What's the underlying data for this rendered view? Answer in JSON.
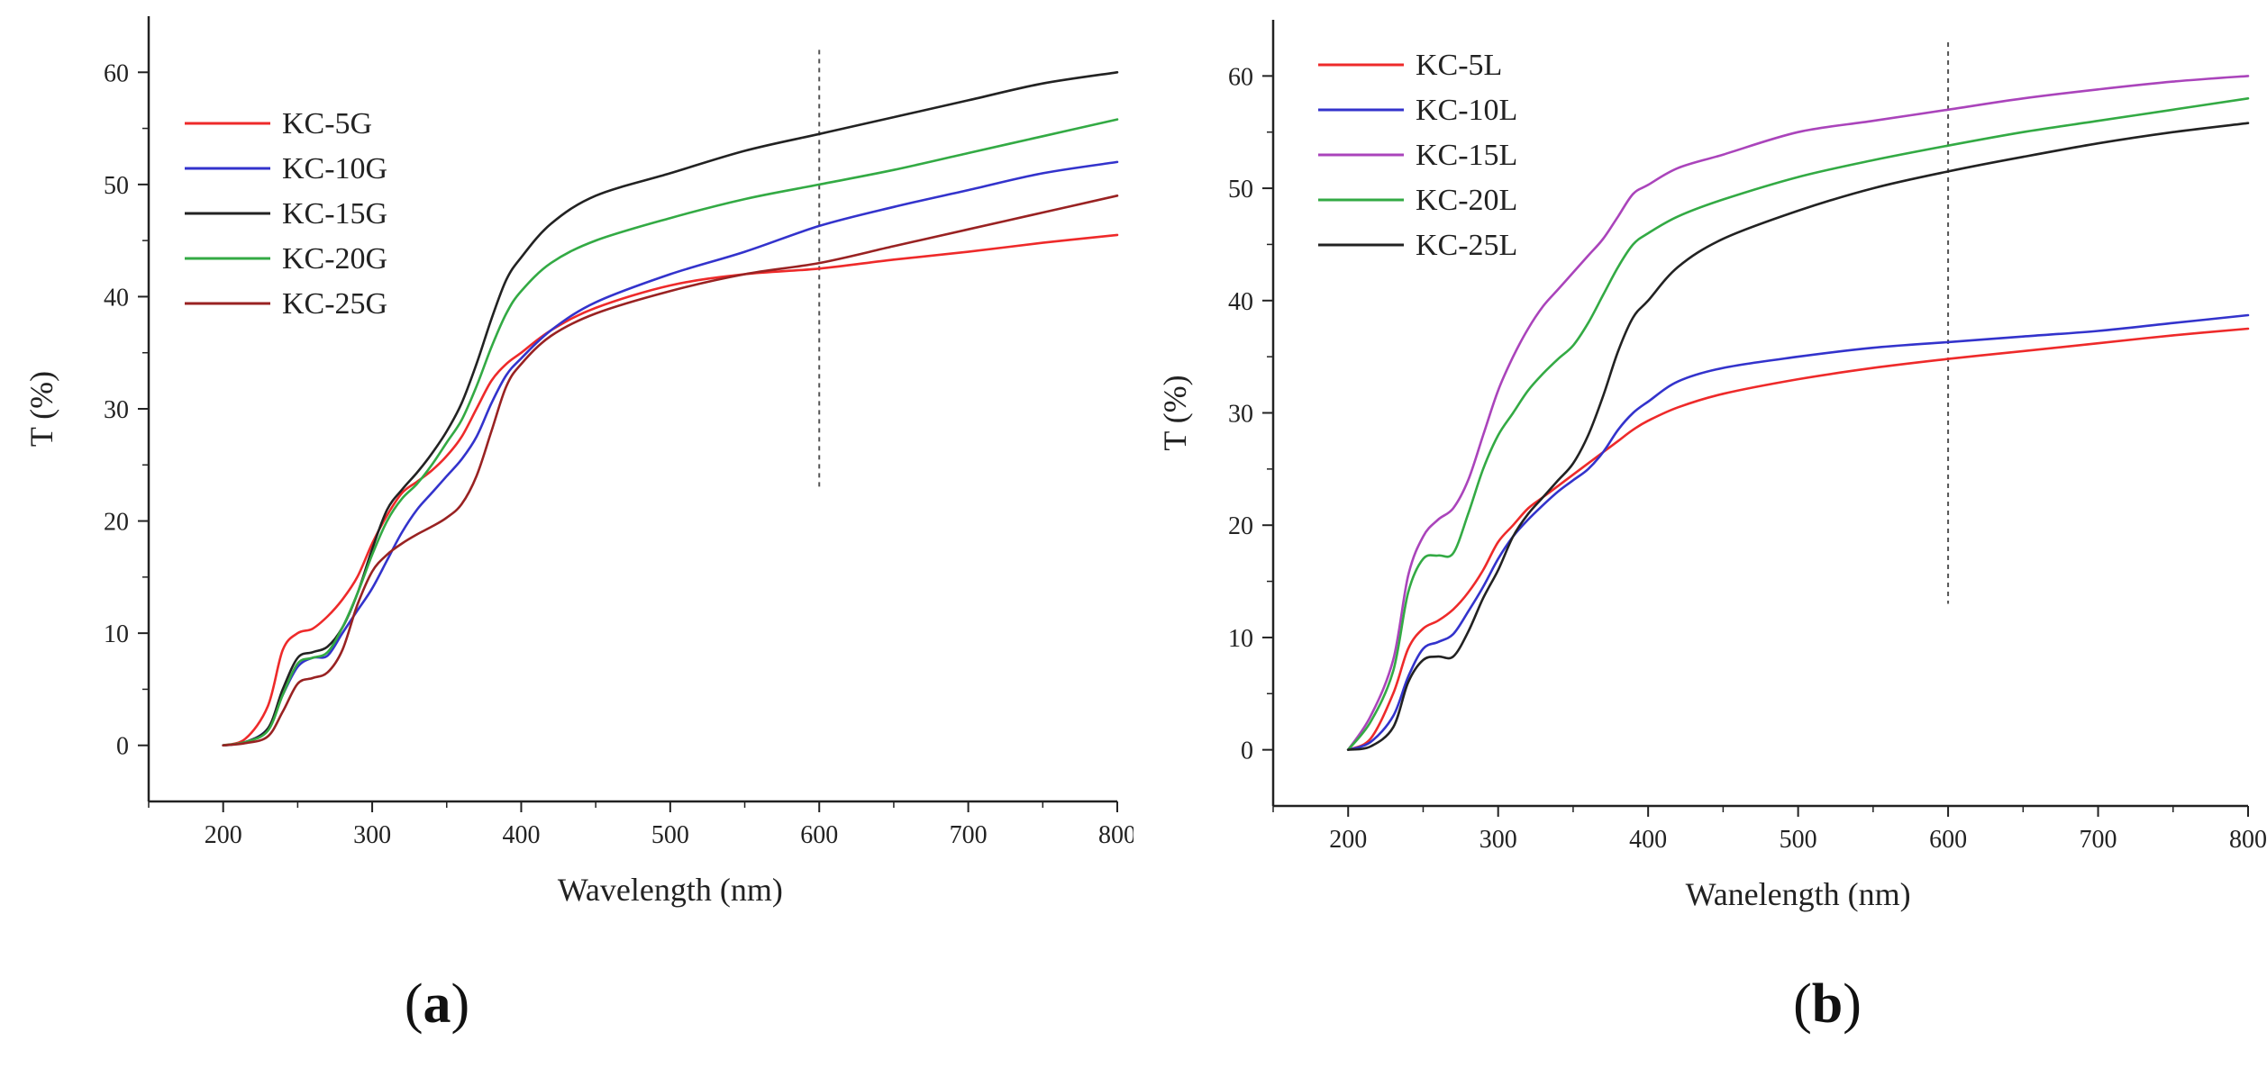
{
  "chart_data": [
    {
      "type": "line",
      "panel_label": "a",
      "title": "",
      "xlabel": "Wavelength (nm)",
      "ylabel": "T (%)",
      "xlim": [
        150,
        800
      ],
      "ylim": [
        -5,
        65
      ],
      "xticks": [
        200,
        300,
        400,
        500,
        600,
        700,
        800
      ],
      "yticks": [
        0,
        10,
        20,
        30,
        40,
        50,
        60
      ],
      "reference_line_x": 600,
      "reference_line_y_range": [
        23,
        62
      ],
      "legend_position": "top-left",
      "series": [
        {
          "name": "KC-5G",
          "color": "#ee2a2a",
          "x": [
            200,
            215,
            230,
            240,
            250,
            260,
            270,
            280,
            290,
            300,
            310,
            320,
            330,
            340,
            350,
            360,
            370,
            380,
            390,
            400,
            420,
            450,
            500,
            550,
            600,
            650,
            700,
            750,
            800
          ],
          "y": [
            0,
            0.6,
            3.5,
            8.5,
            10,
            10.4,
            11.5,
            13,
            15,
            18,
            20.5,
            22.5,
            23.5,
            24.5,
            25.8,
            27.5,
            30,
            32.5,
            34,
            35,
            37,
            39,
            41,
            42,
            42.5,
            43.3,
            44,
            44.8,
            45.5
          ]
        },
        {
          "name": "KC-10G",
          "color": "#3333cc",
          "x": [
            200,
            215,
            230,
            240,
            250,
            260,
            270,
            280,
            290,
            300,
            310,
            320,
            330,
            340,
            350,
            360,
            370,
            380,
            390,
            400,
            420,
            450,
            500,
            550,
            600,
            650,
            700,
            750,
            800
          ],
          "y": [
            0,
            0.3,
            1.5,
            4.5,
            7,
            7.8,
            8,
            10,
            12,
            14,
            16.5,
            19,
            21,
            22.5,
            24,
            25.5,
            27.5,
            30.5,
            33,
            34.5,
            37,
            39.5,
            42,
            44,
            46.3,
            48,
            49.5,
            51,
            52
          ]
        },
        {
          "name": "KC-15G",
          "color": "#222222",
          "x": [
            200,
            215,
            230,
            240,
            250,
            260,
            270,
            280,
            290,
            300,
            310,
            320,
            330,
            340,
            350,
            360,
            370,
            380,
            390,
            400,
            420,
            450,
            500,
            550,
            600,
            650,
            700,
            750,
            800
          ],
          "y": [
            0,
            0.3,
            1.5,
            5,
            7.8,
            8.3,
            8.8,
            10.5,
            13.5,
            17.5,
            21,
            22.8,
            24.3,
            26,
            28,
            30.5,
            34,
            38,
            41.5,
            43.5,
            46.5,
            49,
            51,
            53,
            54.5,
            56,
            57.5,
            59,
            60
          ]
        },
        {
          "name": "KC-20G",
          "color": "#33aa44",
          "x": [
            200,
            215,
            230,
            240,
            250,
            260,
            270,
            280,
            290,
            300,
            310,
            320,
            330,
            340,
            350,
            360,
            370,
            380,
            390,
            400,
            420,
            450,
            500,
            550,
            600,
            650,
            700,
            750,
            800
          ],
          "y": [
            0,
            0.3,
            1.3,
            4.5,
            7.3,
            7.8,
            8.3,
            10.5,
            13.5,
            17,
            20,
            22,
            23.3,
            25,
            27,
            29,
            32,
            35.5,
            38.5,
            40.5,
            43,
            45,
            47,
            48.7,
            50,
            51.3,
            52.8,
            54.3,
            55.8
          ]
        },
        {
          "name": "KC-25G",
          "color": "#992222",
          "x": [
            200,
            215,
            230,
            240,
            250,
            260,
            270,
            280,
            290,
            300,
            310,
            320,
            330,
            340,
            350,
            360,
            370,
            380,
            390,
            400,
            420,
            450,
            500,
            550,
            600,
            650,
            700,
            750,
            800
          ],
          "y": [
            0,
            0.2,
            0.8,
            3,
            5.5,
            6,
            6.5,
            8.5,
            12.5,
            15.5,
            17,
            18,
            18.8,
            19.5,
            20.3,
            21.5,
            24,
            28,
            32,
            34,
            36.5,
            38.5,
            40.5,
            42,
            43,
            44.5,
            46,
            47.5,
            49
          ]
        }
      ]
    },
    {
      "type": "line",
      "panel_label": "b",
      "title": "",
      "xlabel": "Wanelength (nm)",
      "ylabel": "T (%)",
      "xlim": [
        150,
        800
      ],
      "ylim": [
        -5,
        65
      ],
      "xticks": [
        200,
        300,
        400,
        500,
        600,
        700,
        800
      ],
      "yticks": [
        0,
        10,
        20,
        30,
        40,
        50,
        60
      ],
      "reference_line_x": 600,
      "reference_line_y_range": [
        13,
        63
      ],
      "legend_position": "top-left",
      "series": [
        {
          "name": "KC-5L",
          "color": "#ee2a2a",
          "x": [
            200,
            215,
            230,
            240,
            250,
            260,
            270,
            280,
            290,
            300,
            310,
            320,
            330,
            340,
            350,
            360,
            370,
            380,
            390,
            400,
            420,
            450,
            500,
            550,
            600,
            650,
            700,
            750,
            800
          ],
          "y": [
            0,
            1,
            5,
            9,
            10.8,
            11.5,
            12.5,
            14,
            16,
            18.5,
            20,
            21.5,
            22.5,
            23.5,
            24.5,
            25.5,
            26.5,
            27.5,
            28.5,
            29.3,
            30.5,
            31.7,
            33,
            34,
            34.8,
            35.5,
            36.2,
            36.9,
            37.5
          ]
        },
        {
          "name": "KC-10L",
          "color": "#3333cc",
          "x": [
            200,
            215,
            230,
            240,
            250,
            260,
            270,
            280,
            290,
            300,
            310,
            320,
            330,
            340,
            350,
            360,
            370,
            380,
            390,
            400,
            420,
            450,
            500,
            550,
            600,
            650,
            700,
            750,
            800
          ],
          "y": [
            0,
            0.7,
            3,
            6.5,
            9,
            9.6,
            10.3,
            12.3,
            14.5,
            17,
            19,
            20.5,
            21.8,
            23,
            24,
            25,
            26.5,
            28.5,
            30,
            31,
            32.8,
            34,
            35,
            35.8,
            36.3,
            36.8,
            37.3,
            38,
            38.7
          ]
        },
        {
          "name": "KC-15L",
          "color": "#aa44bb",
          "x": [
            200,
            215,
            230,
            240,
            250,
            260,
            270,
            280,
            290,
            300,
            310,
            320,
            330,
            340,
            350,
            360,
            370,
            380,
            390,
            400,
            420,
            450,
            500,
            550,
            600,
            650,
            700,
            750,
            800
          ],
          "y": [
            0,
            3,
            8,
            15.5,
            19,
            20.5,
            21.5,
            24,
            28,
            32,
            35,
            37.5,
            39.5,
            41,
            42.5,
            44,
            45.5,
            47.5,
            49.5,
            50.3,
            51.8,
            53,
            55,
            56,
            57,
            58,
            58.8,
            59.5,
            60
          ]
        },
        {
          "name": "KC-20L",
          "color": "#33aa44",
          "x": [
            200,
            215,
            230,
            240,
            250,
            260,
            270,
            280,
            290,
            300,
            310,
            320,
            330,
            340,
            350,
            360,
            370,
            380,
            390,
            400,
            420,
            450,
            500,
            550,
            600,
            650,
            700,
            750,
            800
          ],
          "y": [
            0,
            2.5,
            7,
            14,
            17,
            17.3,
            17.5,
            21,
            25,
            28,
            30,
            32,
            33.5,
            34.8,
            36,
            38,
            40.5,
            43,
            45,
            46,
            47.5,
            49,
            51,
            52.5,
            53.8,
            55,
            56,
            57,
            58
          ]
        },
        {
          "name": "KC-25L",
          "color": "#222222",
          "x": [
            200,
            215,
            230,
            240,
            250,
            260,
            270,
            280,
            290,
            300,
            310,
            320,
            330,
            340,
            350,
            360,
            370,
            380,
            390,
            400,
            420,
            450,
            500,
            550,
            600,
            650,
            700,
            750,
            800
          ],
          "y": [
            0,
            0.3,
            2,
            6,
            8,
            8.3,
            8.3,
            10.5,
            13.5,
            16,
            19,
            21,
            22.5,
            24,
            25.5,
            28,
            31.5,
            35.5,
            38.5,
            40,
            43,
            45.5,
            48,
            50,
            51.5,
            52.8,
            54,
            55,
            55.8
          ]
        }
      ]
    }
  ]
}
